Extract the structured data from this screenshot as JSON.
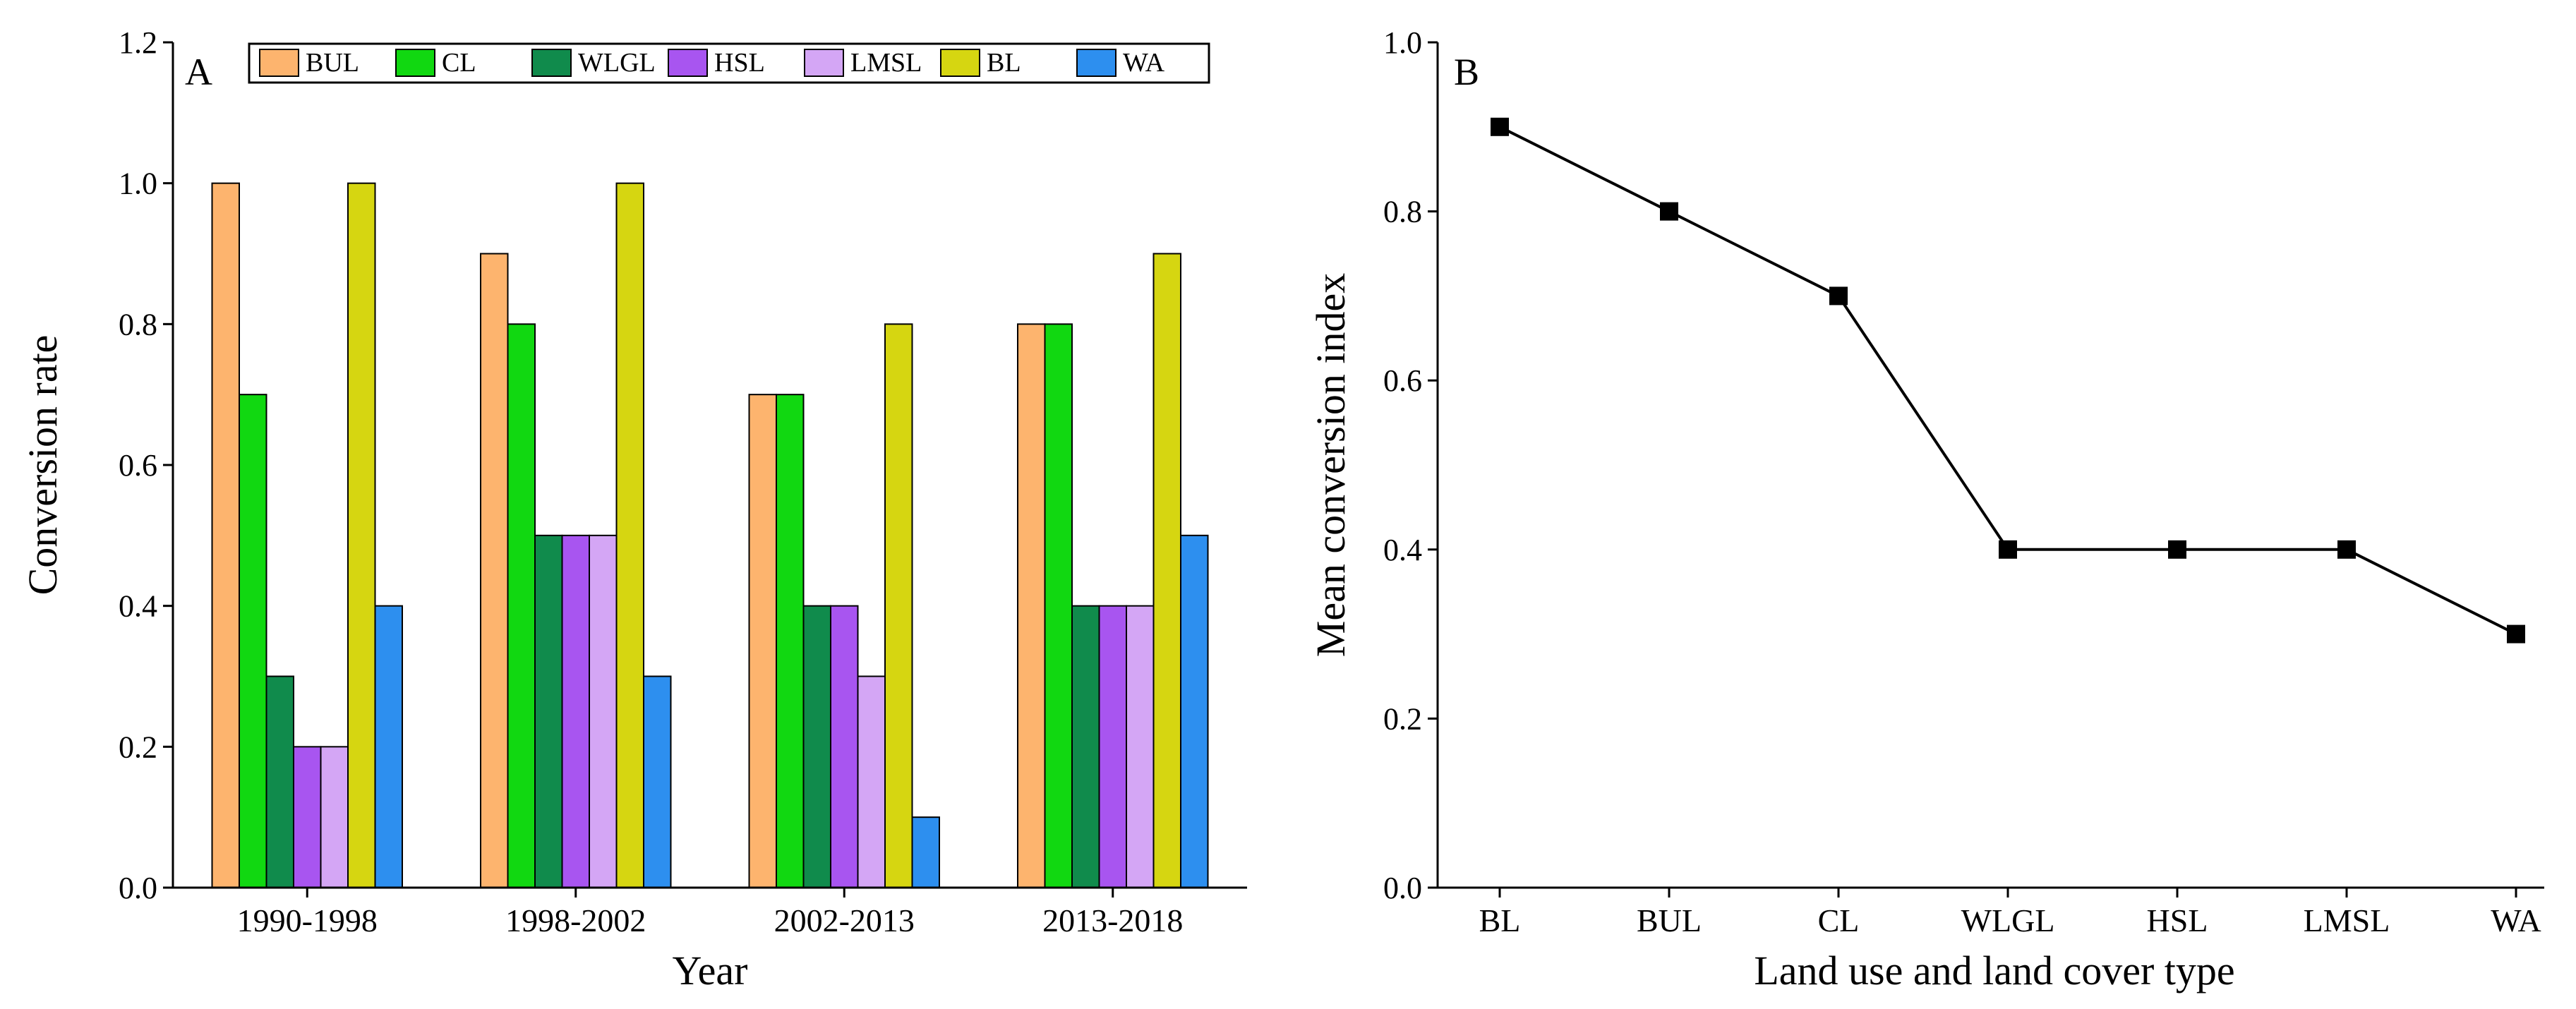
{
  "chart_data": [
    {
      "type": "bar",
      "panel_label": "A",
      "title": "",
      "xlabel": "Year",
      "ylabel": "Conversion rate",
      "ylim": [
        0,
        1.2
      ],
      "yticks": [
        "0.0",
        "0.2",
        "0.4",
        "0.6",
        "0.8",
        "1.0",
        "1.2"
      ],
      "categories": [
        "1990-1998",
        "1998-2002",
        "2002-2013",
        "2013-2018"
      ],
      "series": [
        {
          "name": "BUL",
          "color": "#FDB46E",
          "values": [
            1.0,
            0.9,
            0.7,
            0.8
          ]
        },
        {
          "name": "CL",
          "color": "#11D811",
          "values": [
            0.7,
            0.8,
            0.7,
            0.8
          ]
        },
        {
          "name": "WLGL",
          "color": "#108B4C",
          "values": [
            0.3,
            0.5,
            0.4,
            0.4
          ]
        },
        {
          "name": "HSL",
          "color": "#A855F0",
          "values": [
            0.2,
            0.5,
            0.4,
            0.4
          ]
        },
        {
          "name": "LMSL",
          "color": "#D4A6F5",
          "values": [
            0.2,
            0.5,
            0.3,
            0.4
          ]
        },
        {
          "name": "BL",
          "color": "#D6D611",
          "values": [
            1.0,
            1.0,
            0.8,
            0.9
          ]
        },
        {
          "name": "WA",
          "color": "#2D8FEF",
          "values": [
            0.4,
            0.3,
            0.1,
            0.5
          ]
        }
      ],
      "legend_position": "top"
    },
    {
      "type": "line",
      "panel_label": "B",
      "title": "",
      "xlabel": "Land use and land cover type",
      "ylabel": "Mean conversion index",
      "ylim": [
        0,
        1.0
      ],
      "yticks": [
        "0.0",
        "0.2",
        "0.4",
        "0.6",
        "0.8",
        "1.0"
      ],
      "categories": [
        "BL",
        "BUL",
        "CL",
        "WLGL",
        "HSL",
        "LMSL",
        "WA"
      ],
      "series": [
        {
          "name": "Mean conversion index",
          "color": "#000000",
          "values": [
            0.9,
            0.8,
            0.7,
            0.4,
            0.4,
            0.4,
            0.3
          ]
        }
      ]
    }
  ]
}
